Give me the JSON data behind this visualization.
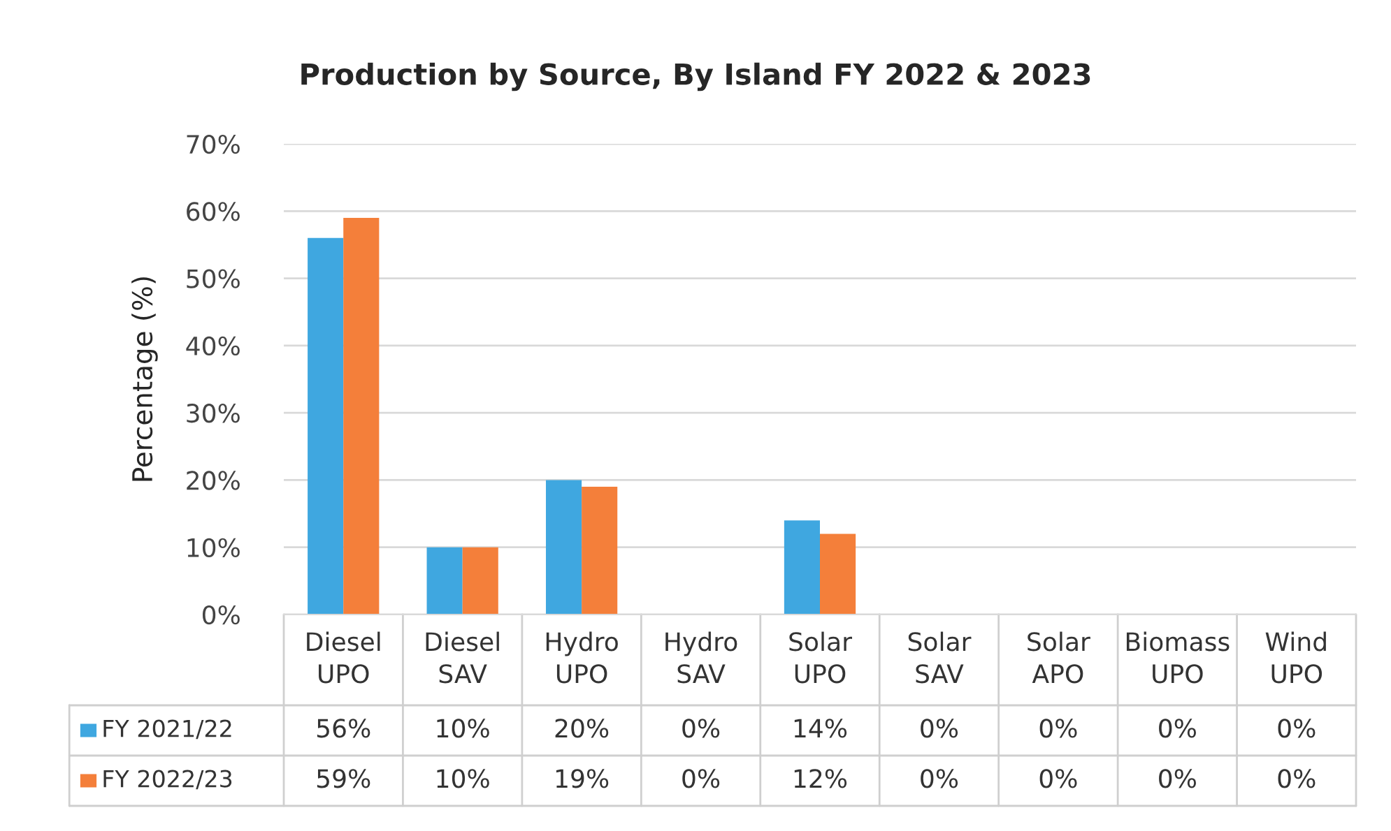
{
  "chart_data": {
    "type": "bar",
    "title": "Production by Source, By Island FY 2022 & 2023",
    "ylabel": "Percentage (%)",
    "categories": [
      "Diesel UPO",
      "Diesel SAV",
      "Hydro UPO",
      "Hydro SAV",
      "Solar UPO",
      "Solar SAV",
      "Solar APO",
      "Biomass UPO",
      "Wind UPO"
    ],
    "series": [
      {
        "name": "FY 2021/22",
        "color": "#3fa7e0",
        "values": [
          56,
          10,
          20,
          0,
          14,
          0,
          0,
          0,
          0
        ],
        "value_labels": [
          "56%",
          "10%",
          "20%",
          "0%",
          "14%",
          "0%",
          "0%",
          "0%",
          "0%"
        ]
      },
      {
        "name": "FY 2022/23",
        "color": "#f47f3a",
        "values": [
          59,
          10,
          19,
          0,
          12,
          0,
          0,
          0,
          0
        ],
        "value_labels": [
          "59%",
          "10%",
          "19%",
          "0%",
          "12%",
          "0%",
          "0%",
          "0%",
          "0%"
        ]
      }
    ],
    "ylim": [
      0,
      70
    ],
    "yticks": [
      {
        "value": 0,
        "label": "0%"
      },
      {
        "value": 10,
        "label": "10%"
      },
      {
        "value": 20,
        "label": "20%"
      },
      {
        "value": 30,
        "label": "30%"
      },
      {
        "value": 40,
        "label": "40%"
      },
      {
        "value": 50,
        "label": "50%"
      },
      {
        "value": 60,
        "label": "60%"
      },
      {
        "value": 70,
        "label": "70%"
      }
    ],
    "grid": "y",
    "legend": "bottom left"
  }
}
